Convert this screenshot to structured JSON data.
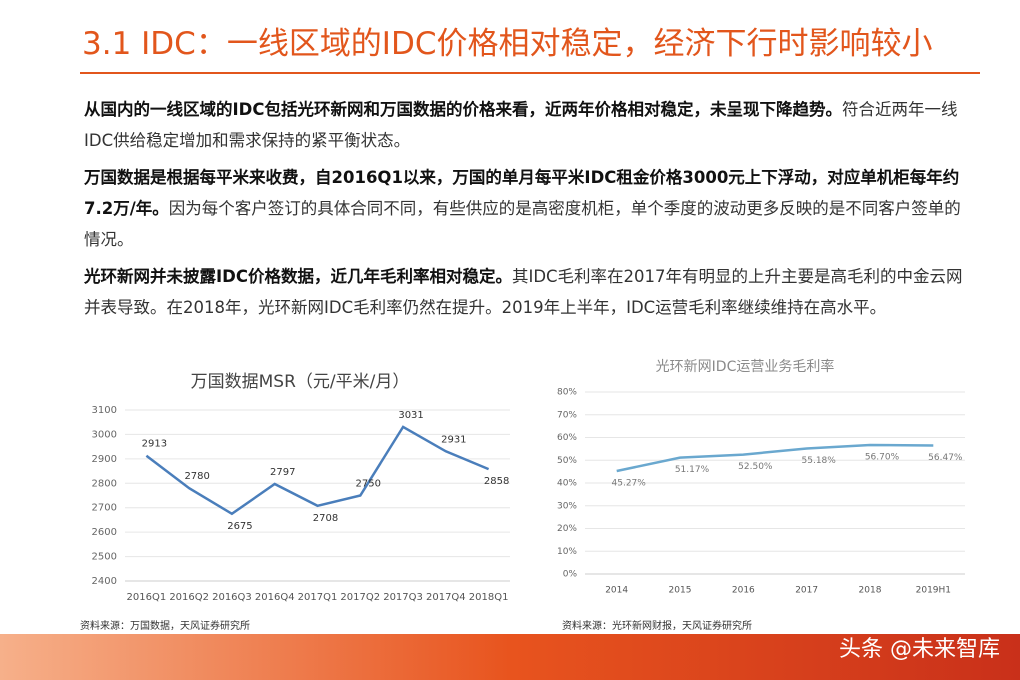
{
  "title": "3.1 IDC：一线区域的IDC价格相对稳定，经济下行时影响较小",
  "paragraphs": [
    {
      "bold": "从国内的一线区域的IDC包括光环新网和万国数据的价格来看，近两年价格相对稳定，未呈现下降趋势。",
      "text": "符合近两年一线IDC供给稳定增加和需求保持的紧平衡状态。"
    },
    {
      "bold": "万国数据是根据每平米来收费，自2016Q1以来，万国的单月每平米IDC租金价格3000元上下浮动，对应单机柜每年约7.2万/年。",
      "text": "因为每个客户签订的具体合同不同，有些供应的是高密度机柜，单个季度的波动更多反映的是不同客户签单的情况。"
    },
    {
      "bold": "光环新网并未披露IDC价格数据，近几年毛利率相对稳定。",
      "text": "其IDC毛利率在2017年有明显的上升主要是高毛利的中金云网并表导致。在2018年，光环新网IDC毛利率仍然在提升。2019年上半年，IDC运营毛利率继续维持在高水平。"
    }
  ],
  "chart_data": [
    {
      "type": "line",
      "title": "万国数据MSR（元/平米/月）",
      "categories": [
        "2016Q1",
        "2016Q2",
        "2016Q3",
        "2016Q4",
        "2017Q1",
        "2017Q2",
        "2017Q3",
        "2017Q4",
        "2018Q1"
      ],
      "values": [
        2913,
        2780,
        2675,
        2797,
        2708,
        2750,
        3031,
        2931,
        2858
      ],
      "color": "#4a7ebb",
      "ylim": [
        2400,
        3100
      ],
      "yticks": [
        2400,
        2500,
        2600,
        2700,
        2800,
        2900,
        3000,
        3100
      ],
      "grid": true,
      "source": "资料来源：万国数据，天风证券研究所"
    },
    {
      "type": "line",
      "title": "光环新网IDC运营业务毛利率",
      "categories": [
        "2014",
        "2015",
        "2016",
        "2017",
        "2018",
        "2019H1"
      ],
      "values": [
        45.27,
        51.17,
        52.5,
        55.18,
        56.7,
        56.47
      ],
      "value_labels": [
        "45.27%",
        "51.17%",
        "52.50%",
        "55.18%",
        "56.70%",
        "56.47%"
      ],
      "color": "#6aa8cf",
      "ylim": [
        0,
        80
      ],
      "yticks": [
        {
          "value": 0,
          "label": "0%"
        },
        {
          "value": 10,
          "label": "10%"
        },
        {
          "value": 20,
          "label": "20%"
        },
        {
          "value": 30,
          "label": "30%"
        },
        {
          "value": 40,
          "label": "40%"
        },
        {
          "value": 50,
          "label": "50%"
        },
        {
          "value": 60,
          "label": "60%"
        },
        {
          "value": 70,
          "label": "70%"
        },
        {
          "value": 80,
          "label": "80%"
        }
      ],
      "grid": true,
      "source": "资料来源：光环新网财报，天风证券研究所"
    }
  ],
  "watermark": "头条 @未来智库"
}
